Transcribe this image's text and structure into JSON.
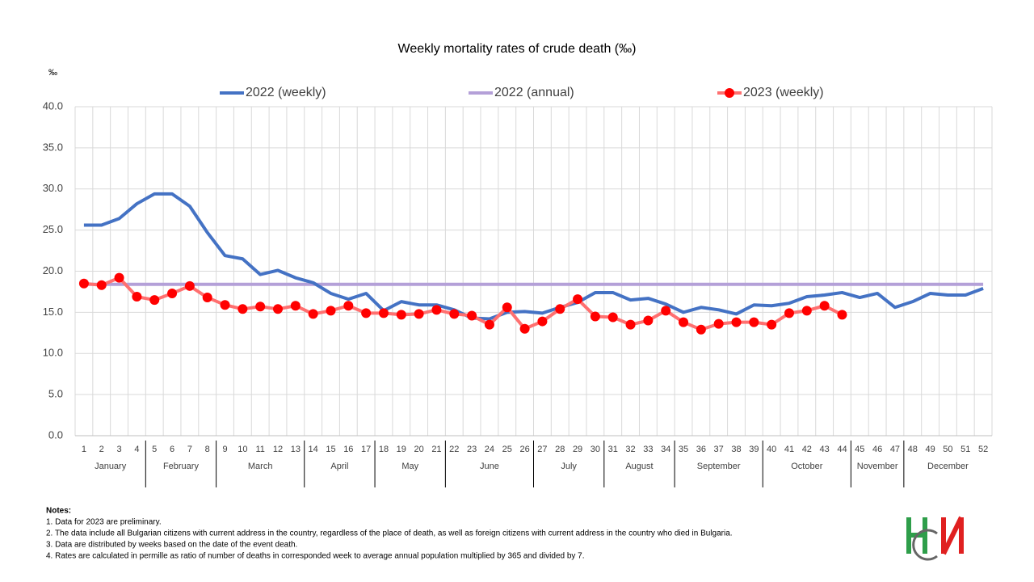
{
  "chart_data": {
    "type": "line",
    "title": "Weekly mortality rates of crude death (‰)",
    "y_label": "‰",
    "categories": [
      "1",
      "2",
      "3",
      "4",
      "5",
      "6",
      "7",
      "8",
      "9",
      "10",
      "11",
      "12",
      "13",
      "14",
      "15",
      "16",
      "17",
      "18",
      "19",
      "20",
      "21",
      "22",
      "23",
      "24",
      "25",
      "26",
      "27",
      "28",
      "29",
      "30",
      "31",
      "32",
      "33",
      "34",
      "35",
      "36",
      "37",
      "38",
      "39",
      "40",
      "41",
      "42",
      "43",
      "44",
      "45",
      "46",
      "47",
      "48",
      "49",
      "50",
      "51",
      "52"
    ],
    "group_labels": [
      "January",
      "January",
      "January",
      "January",
      "February",
      "February",
      "February",
      "February",
      "March",
      "March",
      "March",
      "March",
      "March",
      "April",
      "April",
      "April",
      "April",
      "May",
      "May",
      "May",
      "May",
      "June",
      "June",
      "June",
      "June",
      "June",
      "July",
      "July",
      "July",
      "July",
      "August",
      "August",
      "August",
      "August",
      "September",
      "September",
      "September",
      "September",
      "September",
      "October",
      "October",
      "October",
      "October",
      "October",
      "November",
      "November",
      "November",
      "December",
      "December",
      "December",
      "December",
      "December"
    ],
    "series": [
      {
        "name": "2022 (weekly)",
        "color": "#4472c4",
        "values": [
          25.6,
          25.6,
          26.4,
          28.2,
          29.4,
          29.4,
          27.9,
          24.7,
          21.9,
          21.5,
          19.6,
          20.1,
          19.2,
          18.6,
          17.3,
          16.6,
          17.3,
          15.2,
          16.3,
          15.9,
          15.9,
          15.3,
          14.3,
          14.2,
          15.0,
          15.1,
          14.9,
          15.6,
          16.2,
          17.4,
          17.4,
          16.5,
          16.7,
          16.0,
          15.0,
          15.6,
          15.3,
          14.8,
          15.9,
          15.8,
          16.1,
          16.9,
          17.1,
          17.4,
          16.8,
          17.3,
          15.6,
          16.3,
          17.3,
          17.1,
          17.1,
          17.9
        ]
      },
      {
        "name": "2022 (annual)",
        "color": "#b4a0d8",
        "values": [
          18.4,
          18.4,
          18.4,
          18.4,
          18.4,
          18.4,
          18.4,
          18.4,
          18.4,
          18.4,
          18.4,
          18.4,
          18.4,
          18.4,
          18.4,
          18.4,
          18.4,
          18.4,
          18.4,
          18.4,
          18.4,
          18.4,
          18.4,
          18.4,
          18.4,
          18.4,
          18.4,
          18.4,
          18.4,
          18.4,
          18.4,
          18.4,
          18.4,
          18.4,
          18.4,
          18.4,
          18.4,
          18.4,
          18.4,
          18.4,
          18.4,
          18.4,
          18.4,
          18.4,
          18.4,
          18.4,
          18.4,
          18.4,
          18.4,
          18.4,
          18.4,
          18.4
        ]
      },
      {
        "name": "2023 (weekly)",
        "color": "#ff7070",
        "marker_color": "#ff0000",
        "markers": true,
        "values": [
          18.5,
          18.3,
          19.2,
          16.9,
          16.5,
          17.3,
          18.2,
          16.8,
          15.9,
          15.4,
          15.7,
          15.4,
          15.8,
          14.8,
          15.2,
          15.8,
          14.9,
          14.9,
          14.7,
          14.8,
          15.3,
          14.8,
          14.6,
          13.5,
          15.6,
          13.0,
          13.9,
          15.4,
          16.6,
          14.5,
          14.4,
          13.5,
          14.0,
          15.2,
          13.8,
          12.9,
          13.6,
          13.8,
          13.8,
          13.5,
          14.9,
          15.2,
          15.8,
          14.7,
          null,
          null,
          null,
          null,
          null,
          null,
          null,
          null
        ]
      }
    ],
    "ylim": [
      0,
      40
    ],
    "yticks": [
      {
        "value": 0,
        "label": "0.0"
      },
      {
        "value": 5,
        "label": "5.0"
      },
      {
        "value": 10,
        "label": "10.0"
      },
      {
        "value": 15,
        "label": "15.0"
      },
      {
        "value": 20,
        "label": "20.0"
      },
      {
        "value": 25,
        "label": "25.0"
      },
      {
        "value": 30,
        "label": "30.0"
      },
      {
        "value": 35,
        "label": "35.0"
      },
      {
        "value": 40,
        "label": "40.0"
      }
    ],
    "grid": true,
    "legend": "top"
  },
  "notes": {
    "heading": "Notes:",
    "items": [
      "1. Data for 2023 are preliminary.",
      "2. The data include all Bulgarian citizens with current address in the country, regardless of the place of death, as well as foreign citizens with current address in the country who died in Bulgaria.",
      "3. Data are distributed by weeks based on the date of the event death.",
      "4. Rates are calculated in permille as ratio of number of deaths in corresponded week to average annual population multiplied by 365 and divided by 7."
    ]
  }
}
